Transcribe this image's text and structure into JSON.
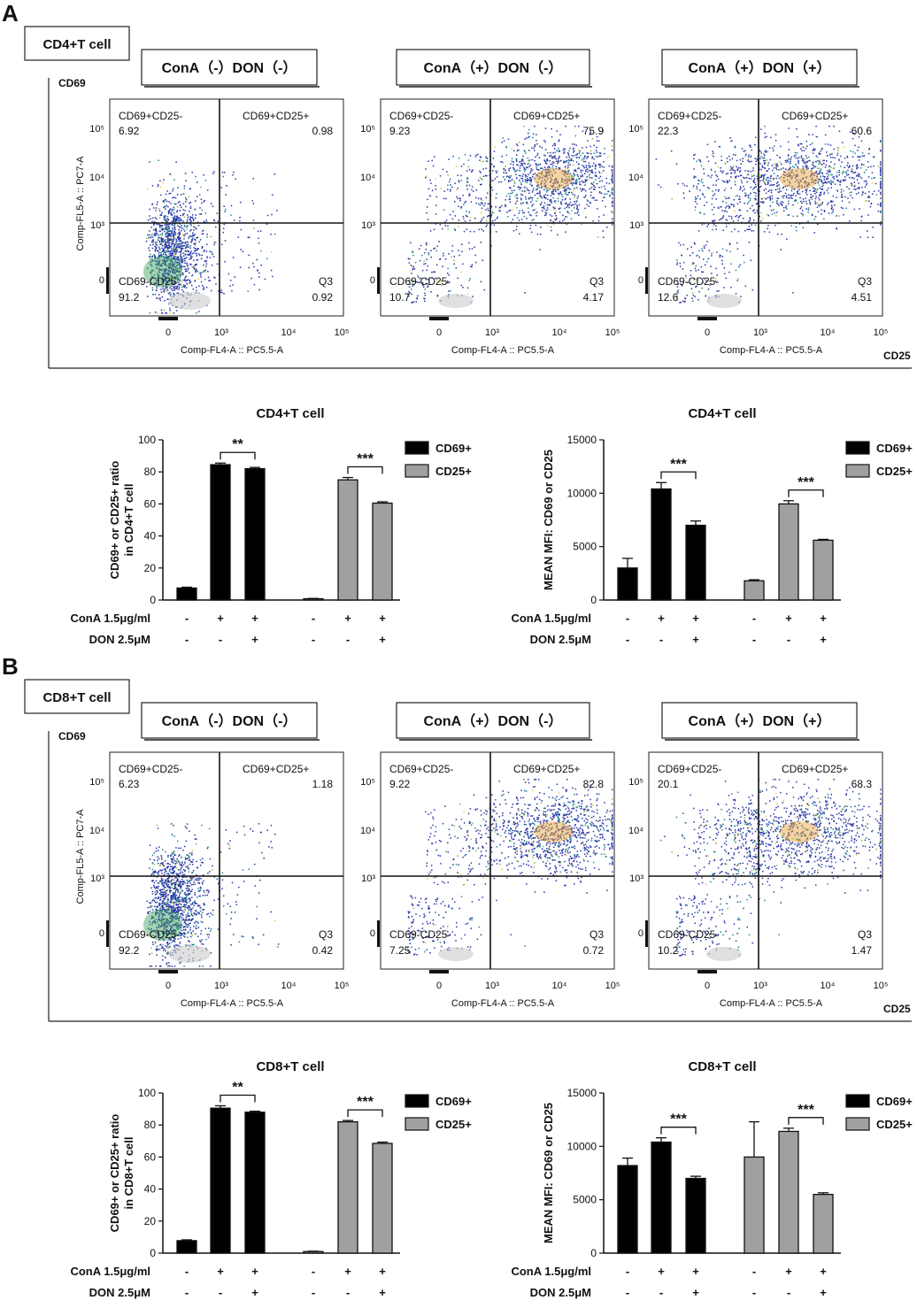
{
  "panels": [
    {
      "letter": "A",
      "cell_label": "CD4+T cell",
      "axis_y_label": "CD69",
      "axis_x_label": "CD25",
      "flow_plots": [
        {
          "condition": "ConA（-）DON（-）",
          "q1": "CD69+CD25-",
          "q1_value": "6.92",
          "q2": "CD69+CD25+",
          "q2_value": "0.98",
          "q4": "CD69-CD25-",
          "q4_value": "91.2",
          "q3": "Q3",
          "q3_value": "0.92",
          "y_axis_title": "Comp-FL5-A :: PC7-A",
          "x_axis_title": "Comp-FL4-A :: PC5.5-A",
          "ticks_y": [
            "10⁵",
            "10⁴",
            "10³",
            "0"
          ],
          "ticks_x": [
            "0",
            "10³",
            "10⁴",
            "10⁵"
          ],
          "cloud": "neg"
        },
        {
          "condition": "ConA（+）DON（-）",
          "q1": "CD69+CD25-",
          "q1_value": "9.23",
          "q2": "CD69+CD25+",
          "q2_value": "75.9",
          "q4": "CD69-CD25-",
          "q4_value": "10.7",
          "q3": "Q3",
          "q3_value": "4.17",
          "y_axis_title": "",
          "x_axis_title": "Comp-FL4-A :: PC5.5-A",
          "ticks_y": [
            "10⁵",
            "10⁴",
            "10³",
            "0"
          ],
          "ticks_x": [
            "0",
            "10³",
            "10⁴",
            "10⁵"
          ],
          "cloud": "pos"
        },
        {
          "condition": "ConA（+）DON（+）",
          "q1": "CD69+CD25-",
          "q1_value": "22.3",
          "q2": "CD69+CD25+",
          "q2_value": "60.6",
          "q4": "CD69-CD25-",
          "q4_value": "12.6",
          "q3": "Q3",
          "q3_value": "4.51",
          "y_axis_title": "",
          "x_axis_title": "Comp-FL4-A :: PC5.5-A",
          "ticks_y": [
            "10⁵",
            "10⁴",
            "10³",
            "0"
          ],
          "ticks_x": [
            "0",
            "10³",
            "10⁴",
            "10⁵"
          ],
          "cloud": "mid"
        }
      ],
      "ratio_chart": {
        "type": "bar",
        "title": "CD4+T cell",
        "ylabel_line1": "CD69+ or CD25+ ratio",
        "ylabel_line2": "in CD4+T cell",
        "ylim": [
          0,
          100
        ],
        "yticks": [
          "0",
          "20",
          "40",
          "60",
          "80",
          "100"
        ],
        "series": [
          {
            "name": "CD69+",
            "color": "#000000",
            "values": [
              7.5,
              84.5,
              82.0
            ],
            "errors": [
              0.5,
              1.0,
              0.8
            ]
          },
          {
            "name": "CD25+",
            "color": "#a0a0a0",
            "values": [
              0.8,
              75.0,
              60.5
            ],
            "errors": [
              0.2,
              1.5,
              0.8
            ]
          }
        ],
        "significance": [
          {
            "series": 0,
            "label": "**"
          },
          {
            "series": 1,
            "label": "***"
          }
        ],
        "row1_label": "ConA 1.5μg/ml",
        "row1_marks": [
          "-",
          "+",
          "+",
          "-",
          "+",
          "+"
        ],
        "row2_label": "DON 2.5μM",
        "row2_marks": [
          "-",
          "-",
          "+",
          "-",
          "-",
          "+"
        ]
      },
      "mfi_chart": {
        "type": "bar",
        "title": "CD4+T cell",
        "ylabel_line1": "MEAN MFI: CD69 or CD25",
        "ylabel_line2": "",
        "ylim": [
          0,
          15000
        ],
        "yticks": [
          "0",
          "5000",
          "10000",
          "15000"
        ],
        "series": [
          {
            "name": "CD69+",
            "color": "#000000",
            "values": [
              3000,
              10400,
              7000
            ],
            "errors": [
              900,
              600,
              400
            ]
          },
          {
            "name": "CD25+",
            "color": "#a0a0a0",
            "values": [
              1800,
              9000,
              5600
            ],
            "errors": [
              100,
              300,
              80
            ]
          }
        ],
        "significance": [
          {
            "series": 0,
            "label": "***"
          },
          {
            "series": 1,
            "label": "***"
          }
        ],
        "row1_label": "ConA 1.5μg/ml",
        "row1_marks": [
          "-",
          "+",
          "+",
          "-",
          "+",
          "+"
        ],
        "row2_label": "DON 2.5μM",
        "row2_marks": [
          "-",
          "-",
          "+",
          "-",
          "-",
          "+"
        ]
      }
    },
    {
      "letter": "B",
      "cell_label": "CD8+T cell",
      "axis_y_label": "CD69",
      "axis_x_label": "CD25",
      "flow_plots": [
        {
          "condition": "ConA（-）DON（-）",
          "q1": "CD69+CD25-",
          "q1_value": "6.23",
          "q2": "CD69+CD25+",
          "q2_value": "1.18",
          "q4": "CD69-CD25-",
          "q4_value": "92.2",
          "q3": "Q3",
          "q3_value": "0.42",
          "y_axis_title": "Comp-FL5-A :: PC7-A",
          "x_axis_title": "Comp-FL4-A :: PC5.5-A",
          "ticks_y": [
            "10⁵",
            "10⁴",
            "10³",
            "0"
          ],
          "ticks_x": [
            "0",
            "10³",
            "10⁴",
            "10⁵"
          ],
          "cloud": "neg"
        },
        {
          "condition": "ConA（+）DON（-）",
          "q1": "CD69+CD25-",
          "q1_value": "9.22",
          "q2": "CD69+CD25+",
          "q2_value": "82.8",
          "q4": "CD69-CD25-",
          "q4_value": "7.25",
          "q3": "Q3",
          "q3_value": "0.72",
          "y_axis_title": "",
          "x_axis_title": "Comp-FL4-A :: PC5.5-A",
          "ticks_y": [
            "10⁵",
            "10⁴",
            "10³",
            "0"
          ],
          "ticks_x": [
            "0",
            "10³",
            "10⁴",
            "10⁵"
          ],
          "cloud": "pos"
        },
        {
          "condition": "ConA（+）DON（+）",
          "q1": "CD69+CD25-",
          "q1_value": "20.1",
          "q2": "CD69+CD25+",
          "q2_value": "68.3",
          "q4": "CD69-CD25-",
          "q4_value": "10.2",
          "q3": "Q3",
          "q3_value": "1.47",
          "y_axis_title": "",
          "x_axis_title": "Comp-FL4-A :: PC5.5-A",
          "ticks_y": [
            "10⁵",
            "10⁴",
            "10³",
            "0"
          ],
          "ticks_x": [
            "0",
            "10³",
            "10⁴",
            "10⁵"
          ],
          "cloud": "mid"
        }
      ],
      "ratio_chart": {
        "type": "bar",
        "title": "CD8+T cell",
        "ylabel_line1": "CD69+ or CD25+ ratio",
        "ylabel_line2": "in CD8+T cell",
        "ylim": [
          0,
          100
        ],
        "yticks": [
          "0",
          "20",
          "40",
          "60",
          "80",
          "100"
        ],
        "series": [
          {
            "name": "CD69+",
            "color": "#000000",
            "values": [
              7.8,
              90.5,
              88.0
            ],
            "errors": [
              0.5,
              1.5,
              0.6
            ]
          },
          {
            "name": "CD25+",
            "color": "#a0a0a0",
            "values": [
              1.0,
              82.0,
              68.5
            ],
            "errors": [
              0.2,
              0.8,
              0.8
            ]
          }
        ],
        "significance": [
          {
            "series": 0,
            "label": "**"
          },
          {
            "series": 1,
            "label": "***"
          }
        ],
        "row1_label": "ConA 1.5μg/ml",
        "row1_marks": [
          "-",
          "+",
          "+",
          "-",
          "+",
          "+"
        ],
        "row2_label": "DON 2.5μM",
        "row2_marks": [
          "-",
          "-",
          "+",
          "-",
          "-",
          "+"
        ]
      },
      "mfi_chart": {
        "type": "bar",
        "title": "CD8+T cell",
        "ylabel_line1": "MEAN MFI: CD69 or CD25",
        "ylabel_line2": "",
        "ylim": [
          0,
          15000
        ],
        "yticks": [
          "0",
          "5000",
          "10000",
          "15000"
        ],
        "series": [
          {
            "name": "CD69+",
            "color": "#000000",
            "values": [
              8200,
              10400,
              7000
            ],
            "errors": [
              700,
              400,
              200
            ]
          },
          {
            "name": "CD25+",
            "color": "#a0a0a0",
            "values": [
              9000,
              11400,
              5500
            ],
            "errors": [
              3300,
              300,
              150
            ]
          }
        ],
        "significance": [
          {
            "series": 0,
            "label": "***"
          },
          {
            "series": 1,
            "label": "***"
          }
        ],
        "row1_label": "ConA 1.5μg/ml",
        "row1_marks": [
          "-",
          "+",
          "+",
          "-",
          "+",
          "+"
        ],
        "row2_label": "DON 2.5μM",
        "row2_marks": [
          "-",
          "-",
          "+",
          "-",
          "-",
          "+"
        ]
      }
    }
  ],
  "chart_data": [
    {
      "type": "scatter",
      "title": "CD4+T cell ConA（-）DON（-）",
      "xlabel": "Comp-FL4-A :: PC5.5-A",
      "ylabel": "Comp-FL5-A :: PC7-A",
      "quadrants": {
        "CD69+CD25-": 6.92,
        "CD69+CD25+": 0.98,
        "CD69-CD25-": 91.2,
        "Q3": 0.92
      }
    },
    {
      "type": "scatter",
      "title": "CD4+T cell ConA（+）DON（-）",
      "xlabel": "Comp-FL4-A :: PC5.5-A",
      "quadrants": {
        "CD69+CD25-": 9.23,
        "CD69+CD25+": 75.9,
        "CD69-CD25-": 10.7,
        "Q3": 4.17
      }
    },
    {
      "type": "scatter",
      "title": "CD4+T cell ConA（+）DON（+）",
      "xlabel": "Comp-FL4-A :: PC5.5-A",
      "quadrants": {
        "CD69+CD25-": 22.3,
        "CD69+CD25+": 60.6,
        "CD69-CD25-": 12.6,
        "Q3": 4.51
      }
    },
    {
      "type": "bar",
      "title": "CD4+T cell",
      "ylabel": "CD69+ or CD25+ ratio in CD4+T cell",
      "ylim": [
        0,
        100
      ],
      "series": [
        {
          "name": "CD69+",
          "values": [
            7.5,
            84.5,
            82.0
          ]
        },
        {
          "name": "CD25+",
          "values": [
            0.8,
            75.0,
            60.5
          ]
        }
      ]
    },
    {
      "type": "bar",
      "title": "CD4+T cell",
      "ylabel": "MEAN MFI: CD69 or CD25",
      "ylim": [
        0,
        15000
      ],
      "series": [
        {
          "name": "CD69+",
          "values": [
            3000,
            10400,
            7000
          ]
        },
        {
          "name": "CD25+",
          "values": [
            1800,
            9000,
            5600
          ]
        }
      ]
    },
    {
      "type": "scatter",
      "title": "CD8+T cell ConA（-）DON（-）",
      "xlabel": "Comp-FL4-A :: PC5.5-A",
      "ylabel": "Comp-FL5-A :: PC7-A",
      "quadrants": {
        "CD69+CD25-": 6.23,
        "CD69+CD25+": 1.18,
        "CD69-CD25-": 92.2,
        "Q3": 0.42
      }
    },
    {
      "type": "scatter",
      "title": "CD8+T cell ConA（+）DON（-）",
      "xlabel": "Comp-FL4-A :: PC5.5-A",
      "quadrants": {
        "CD69+CD25-": 9.22,
        "CD69+CD25+": 82.8,
        "CD69-CD25-": 7.25,
        "Q3": 0.72
      }
    },
    {
      "type": "scatter",
      "title": "CD8+T cell ConA（+）DON（+）",
      "xlabel": "Comp-FL4-A :: PC5.5-A",
      "quadrants": {
        "CD69+CD25-": 20.1,
        "CD69+CD25+": 68.3,
        "CD69-CD25-": 10.2,
        "Q3": 1.47
      }
    },
    {
      "type": "bar",
      "title": "CD8+T cell",
      "ylabel": "CD69+ or CD25+ ratio in CD8+T cell",
      "ylim": [
        0,
        100
      ],
      "series": [
        {
          "name": "CD69+",
          "values": [
            7.8,
            90.5,
            88.0
          ]
        },
        {
          "name": "CD25+",
          "values": [
            1.0,
            82.0,
            68.5
          ]
        }
      ]
    },
    {
      "type": "bar",
      "title": "CD8+T cell",
      "ylabel": "MEAN MFI: CD69 or CD25",
      "ylim": [
        0,
        15000
      ],
      "series": [
        {
          "name": "CD69+",
          "values": [
            8200,
            10400,
            7000
          ]
        },
        {
          "name": "CD25+",
          "values": [
            9000,
            11400,
            5500
          ]
        }
      ]
    }
  ]
}
